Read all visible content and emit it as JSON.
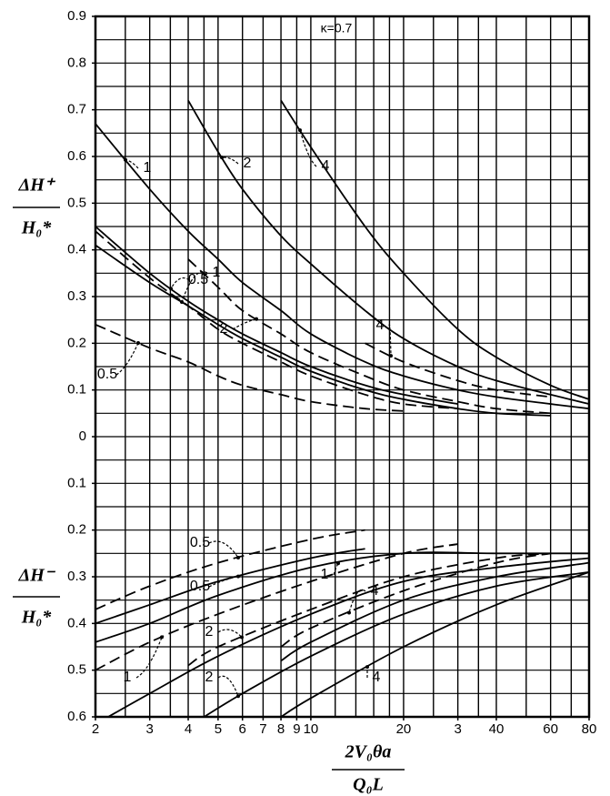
{
  "chart_data": {
    "type": "line",
    "color": "#000000",
    "annotation": "κ=0.7",
    "ylabel_top": {
      "numerator": "ΔH⁺",
      "denominator": "H₀*"
    },
    "ylabel_bottom": {
      "numerator": "ΔH⁻",
      "denominator": "H₀*"
    },
    "xlabel": {
      "numerator": "2V₀θa",
      "denominator": "Q₀L"
    },
    "xscale": "log",
    "xlim": [
      2,
      80
    ],
    "ylim": [
      -0.6,
      0.9
    ],
    "xticks": [
      2,
      3,
      4,
      5,
      6,
      7,
      8,
      9,
      10,
      20,
      {
        "value": 30,
        "label": "3"
      },
      40,
      60,
      80
    ],
    "yticks": [
      0.9,
      0.8,
      0.7,
      0.6,
      0.5,
      0.4,
      0.3,
      0.2,
      0.1,
      0,
      {
        "value": -0.1,
        "label": "0.1"
      },
      {
        "value": -0.2,
        "label": "0.2"
      },
      {
        "value": -0.3,
        "label": "0.3"
      },
      {
        "value": -0.4,
        "label": "0.4"
      },
      {
        "value": -0.5,
        "label": "0.5"
      },
      {
        "value": -0.6,
        "label": "0.6"
      }
    ],
    "xgrid": [
      2,
      2.5,
      3,
      3.5,
      4,
      4.5,
      5,
      6,
      7,
      8,
      9,
      10,
      12,
      14,
      16,
      18,
      20,
      25,
      30,
      35,
      40,
      50,
      60,
      70,
      80
    ],
    "ygrid": [
      0.9,
      0.85,
      0.8,
      0.75,
      0.7,
      0.65,
      0.6,
      0.55,
      0.5,
      0.45,
      0.4,
      0.35,
      0.3,
      0.25,
      0.2,
      0.15,
      0.1,
      0.05,
      0,
      -0.05,
      -0.1,
      -0.15,
      -0.2,
      -0.25,
      -0.3,
      -0.35,
      -0.4,
      -0.45,
      -0.5,
      -0.55,
      -0.6
    ],
    "grid": true,
    "series": [
      {
        "name": "1",
        "dashed": false,
        "x": [
          2,
          3,
          4,
          5,
          6,
          8,
          10,
          15,
          20,
          30,
          40,
          60,
          80
        ],
        "values": [
          0.67,
          0.53,
          0.44,
          0.38,
          0.33,
          0.27,
          0.22,
          0.16,
          0.13,
          0.1,
          0.085,
          0.07,
          0.06
        ]
      },
      {
        "name": "2",
        "dashed": false,
        "x": [
          4,
          5,
          6,
          8,
          10,
          15,
          20,
          30,
          40,
          60,
          80
        ],
        "values": [
          0.72,
          0.61,
          0.53,
          0.43,
          0.37,
          0.27,
          0.21,
          0.15,
          0.12,
          0.09,
          0.07
        ]
      },
      {
        "name": "4",
        "dashed": false,
        "x": [
          8,
          10,
          15,
          20,
          30,
          40,
          60,
          80
        ],
        "values": [
          0.72,
          0.62,
          0.45,
          0.35,
          0.23,
          0.17,
          0.11,
          0.08
        ]
      },
      {
        "name": "0.5",
        "dashed": false,
        "x": [
          2,
          3,
          4,
          5,
          6,
          8,
          10,
          15,
          20,
          30
        ],
        "values": [
          0.45,
          0.35,
          0.29,
          0.25,
          0.22,
          0.18,
          0.15,
          0.11,
          0.09,
          0.07
        ]
      },
      {
        "name": "1",
        "dashed": false,
        "x": [
          2,
          3,
          4,
          5,
          6,
          8,
          10,
          15,
          20,
          30,
          40,
          60
        ],
        "values": [
          0.41,
          0.33,
          0.28,
          0.24,
          0.21,
          0.17,
          0.14,
          0.1,
          0.08,
          0.06,
          0.05,
          0.045
        ]
      },
      {
        "name": "0.5",
        "dashed": true,
        "x": [
          2,
          3,
          4,
          5,
          6,
          8,
          10,
          15,
          20
        ],
        "values": [
          0.24,
          0.19,
          0.16,
          0.13,
          0.11,
          0.09,
          0.075,
          0.06,
          0.055
        ]
      },
      {
        "dashed": true,
        "x": [
          2,
          3,
          4,
          5,
          6,
          8,
          10,
          15,
          20,
          30
        ],
        "values": [
          0.44,
          0.34,
          0.28,
          0.23,
          0.2,
          0.16,
          0.13,
          0.09,
          0.07,
          0.06
        ]
      },
      {
        "name": "2",
        "dashed": true,
        "x": [
          4,
          5,
          6,
          8,
          10,
          15,
          20,
          30,
          40,
          60
        ],
        "values": [
          0.38,
          0.32,
          0.27,
          0.22,
          0.18,
          0.13,
          0.1,
          0.075,
          0.06,
          0.05
        ]
      },
      {
        "name": "4",
        "dashed": true,
        "x": [
          15,
          20,
          30,
          40,
          60
        ],
        "values": [
          0.2,
          0.16,
          0.12,
          0.1,
          0.085
        ]
      },
      {
        "name": "0.5",
        "dashed": true,
        "x": [
          2,
          3,
          5,
          10,
          15
        ],
        "values": [
          -0.37,
          -0.32,
          -0.27,
          -0.22,
          -0.2
        ]
      },
      {
        "name": "0.5",
        "dashed": false,
        "x": [
          2,
          3,
          5,
          10,
          15
        ],
        "values": [
          -0.4,
          -0.36,
          -0.31,
          -0.26,
          -0.24
        ]
      },
      {
        "name": "1",
        "dashed": true,
        "x": [
          2,
          3,
          5,
          10,
          20,
          30
        ],
        "values": [
          -0.5,
          -0.44,
          -0.38,
          -0.31,
          -0.25,
          -0.23
        ]
      },
      {
        "name": "1",
        "dashed": false,
        "x": [
          2,
          3,
          5,
          10,
          20,
          40,
          80
        ],
        "values": [
          -0.44,
          -0.4,
          -0.34,
          -0.28,
          -0.25,
          -0.25,
          -0.25
        ]
      },
      {
        "name": "2",
        "dashed": true,
        "x": [
          4,
          5,
          10,
          20,
          40,
          60
        ],
        "values": [
          -0.49,
          -0.45,
          -0.37,
          -0.3,
          -0.26,
          -0.25
        ]
      },
      {
        "dashed": false,
        "x": [
          2.2,
          3,
          5,
          10,
          20,
          40,
          80
        ],
        "values": [
          -0.6,
          -0.55,
          -0.47,
          -0.38,
          -0.31,
          -0.28,
          -0.26
        ]
      },
      {
        "name": "4",
        "dashed": true,
        "x": [
          8,
          10,
          20,
          40,
          60
        ],
        "values": [
          -0.45,
          -0.41,
          -0.33,
          -0.27,
          -0.25
        ]
      },
      {
        "dashed": false,
        "x": [
          8,
          10,
          20,
          40,
          80
        ],
        "values": [
          -0.48,
          -0.44,
          -0.35,
          -0.3,
          -0.27
        ]
      },
      {
        "name": "2",
        "dashed": false,
        "x": [
          4.5,
          6,
          10,
          20,
          40,
          80
        ],
        "values": [
          -0.6,
          -0.55,
          -0.47,
          -0.38,
          -0.32,
          -0.29
        ]
      },
      {
        "name": "4",
        "dashed": false,
        "x": [
          8,
          10,
          20,
          40,
          80
        ],
        "values": [
          -0.6,
          -0.56,
          -0.45,
          -0.36,
          -0.29
        ]
      }
    ]
  }
}
